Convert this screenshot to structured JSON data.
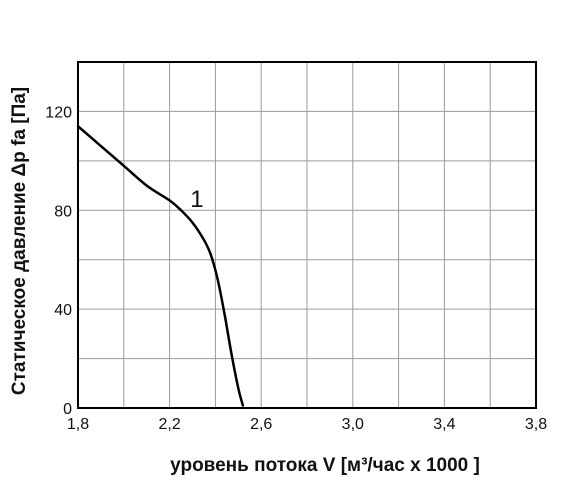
{
  "chart_data": {
    "type": "line",
    "xlabel": "уровень потока  V [м³/час x 1000 ]",
    "ylabel": "Статическое давление  Δp fa [Па]",
    "xlim": [
      1.8,
      3.8
    ],
    "ylim": [
      0,
      140
    ],
    "x_ticks": [
      1.8,
      2.2,
      2.6,
      3.0,
      3.4,
      3.8
    ],
    "x_tick_labels": [
      "1,8",
      "2,2",
      "2,6",
      "3,0",
      "3,4",
      "3,8"
    ],
    "y_ticks": [
      0,
      40,
      80,
      120
    ],
    "y_tick_labels": [
      "0",
      "40",
      "80",
      "120"
    ],
    "grid": true,
    "series": [
      {
        "x": [
          1.8,
          1.9,
          2.0,
          2.1,
          2.2,
          2.25,
          2.3,
          2.35,
          2.38,
          2.41,
          2.44,
          2.47,
          2.5,
          2.52
        ],
        "y": [
          114,
          106,
          98,
          90,
          84,
          80,
          75,
          68,
          62,
          52,
          38,
          22,
          8,
          1
        ],
        "color": "#000000"
      }
    ],
    "annotations": [
      {
        "text": "1",
        "x": 2.29,
        "y": 85
      }
    ]
  }
}
